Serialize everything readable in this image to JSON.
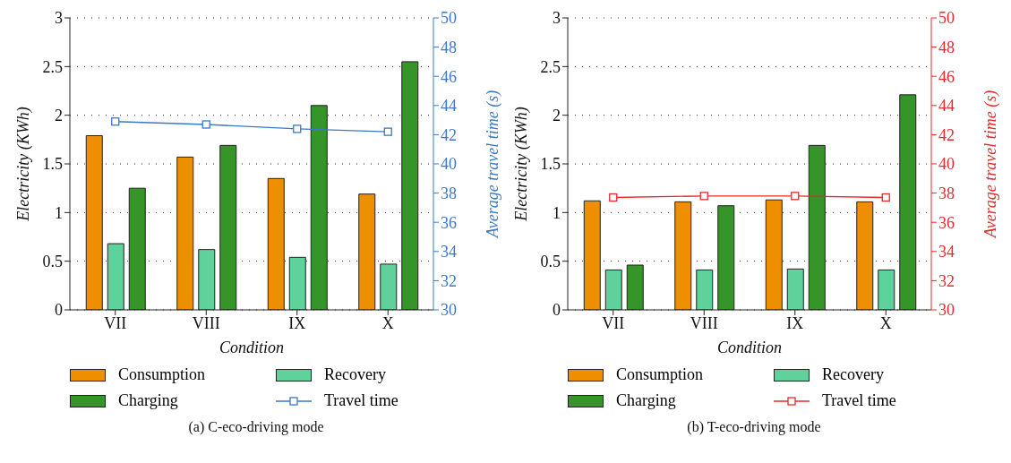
{
  "chart_data": [
    {
      "type": "bar",
      "title": "(a) C-eco-driving mode",
      "xlabel": "Condition",
      "ylabel": "Electricity (KWh)",
      "y2label": "Average travel time (s)",
      "categories": [
        "VII",
        "VIII",
        "IX",
        "X"
      ],
      "series": [
        {
          "name": "Consumption",
          "color": "#ee8f00",
          "values": [
            1.79,
            1.57,
            1.35,
            1.19
          ]
        },
        {
          "name": "Recovery",
          "color": "#5fd19b",
          "values": [
            0.68,
            0.62,
            0.54,
            0.47
          ]
        },
        {
          "name": "Charging",
          "color": "#359528",
          "values": [
            1.25,
            1.69,
            2.1,
            2.55
          ]
        },
        {
          "name": "Travel time",
          "type": "line",
          "axis": "y2",
          "marker": "square",
          "color": "#3a78c8",
          "values": [
            42.9,
            42.7,
            42.4,
            42.2
          ]
        }
      ],
      "ylim": [
        0,
        3
      ],
      "yticks": [
        0,
        0.5,
        1,
        1.5,
        2,
        2.5,
        3
      ],
      "y2lim": [
        30,
        50
      ],
      "y2ticks": [
        30,
        32,
        34,
        36,
        38,
        40,
        42,
        44,
        46,
        48,
        50
      ],
      "grid": "y",
      "legend": "bottom"
    },
    {
      "type": "bar",
      "title": "(b) T-eco-driving mode",
      "xlabel": "Condition",
      "ylabel": "Electricity (KWh)",
      "y2label": "Average travel time (s)",
      "categories": [
        "VII",
        "VIII",
        "IX",
        "X"
      ],
      "series": [
        {
          "name": "Consumption",
          "color": "#ee8f00",
          "values": [
            1.12,
            1.11,
            1.13,
            1.11
          ]
        },
        {
          "name": "Recovery",
          "color": "#5fd19b",
          "values": [
            0.41,
            0.41,
            0.42,
            0.41
          ]
        },
        {
          "name": "Charging",
          "color": "#359528",
          "values": [
            0.46,
            1.07,
            1.69,
            2.21
          ]
        },
        {
          "name": "Travel time",
          "type": "line",
          "axis": "y2",
          "marker": "square",
          "color": "#e8282a",
          "values": [
            37.7,
            37.8,
            37.8,
            37.7
          ]
        }
      ],
      "ylim": [
        0,
        3
      ],
      "yticks": [
        0,
        0.5,
        1,
        1.5,
        2,
        2.5,
        3
      ],
      "y2lim": [
        30,
        50
      ],
      "y2ticks": [
        30,
        32,
        34,
        36,
        38,
        40,
        42,
        44,
        46,
        48,
        50
      ],
      "grid": "y",
      "legend": "bottom"
    }
  ]
}
